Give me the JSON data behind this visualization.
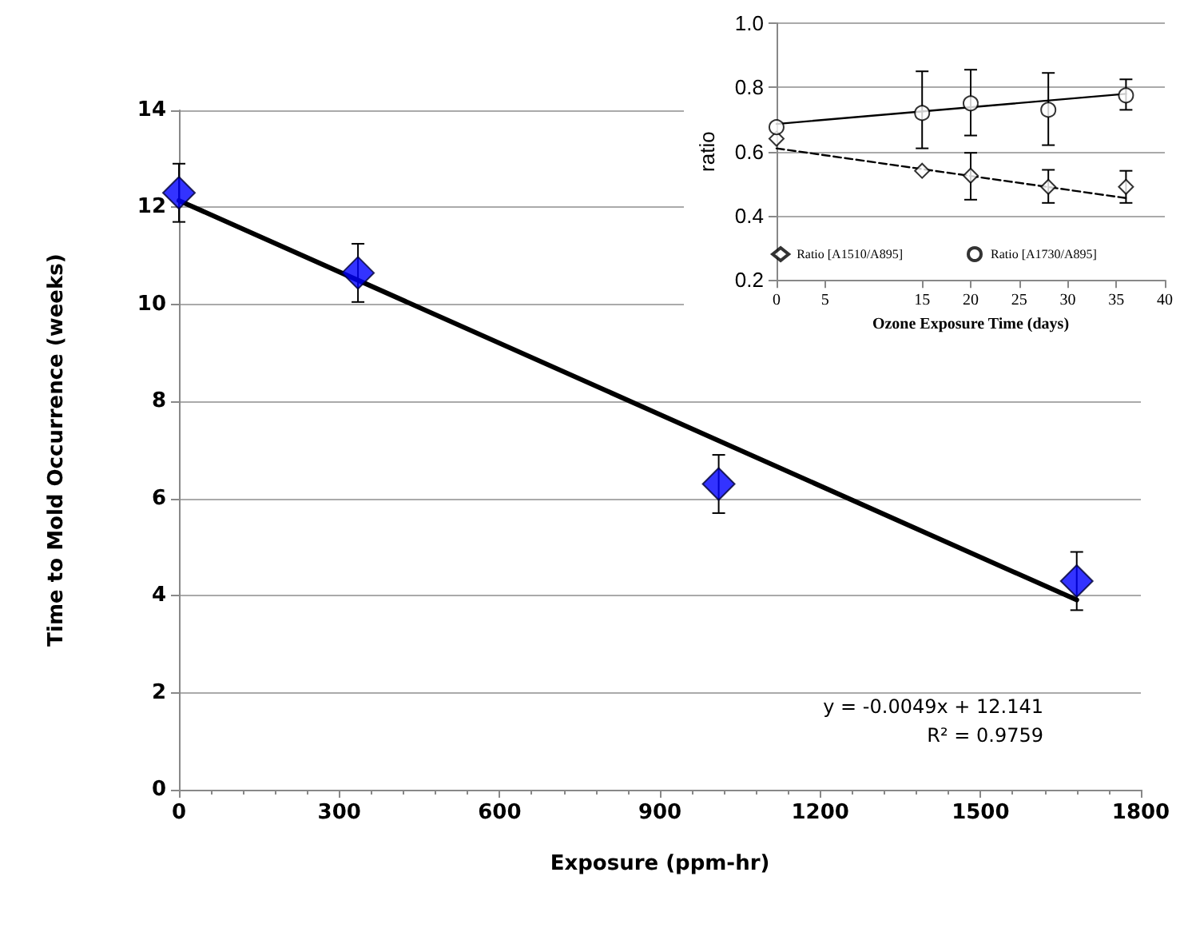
{
  "chart_data": [
    {
      "type": "scatter",
      "xlabel": "Exposure (ppm-hr)",
      "ylabel": "Time to Mold Occurrence (weeks)",
      "xlim": [
        0,
        1800
      ],
      "xticks": [
        0,
        300,
        600,
        900,
        1200,
        1500,
        1800
      ],
      "ylim": [
        0,
        14
      ],
      "yticks": [
        0,
        2,
        4,
        6,
        8,
        10,
        12,
        14
      ],
      "grid": "y",
      "series": [
        {
          "type": "scatter",
          "color": "#0000ff",
          "marker": "diamond",
          "x": [
            0,
            335,
            1010,
            1680
          ],
          "values": [
            12.3,
            10.65,
            6.3,
            4.3
          ],
          "errors": [
            0.6,
            0.6,
            0.6,
            0.6
          ]
        },
        {
          "type": "line",
          "color": "#000000",
          "marker": "none",
          "line_style": "solid",
          "x": [
            0,
            1680
          ],
          "values": [
            12.14,
            3.91
          ]
        }
      ],
      "annotations": [
        "y = -0.0049x + 12.141",
        "R² = 0.9759"
      ]
    },
    {
      "type": "scatter",
      "xlabel": "Ozone Exposure Time (days)",
      "ylabel": "ratio",
      "xlim": [
        0,
        40
      ],
      "xticks": [
        0,
        5,
        15,
        20,
        25,
        30,
        35,
        40
      ],
      "ylim": [
        0.2,
        1
      ],
      "yticks": [
        0.2,
        0.4,
        0.6,
        0.8,
        {
          "value": 1,
          "label": "1.0"
        }
      ],
      "grid": "y",
      "legend": "bottom",
      "series": [
        {
          "type": "scatter",
          "name": "Ratio [A1510/A895]",
          "color": "#000000",
          "marker": "diamond",
          "x": [
            0,
            15,
            20,
            28,
            36
          ],
          "values": [
            0.64,
            0.54,
            0.525,
            0.49,
            0.49
          ],
          "errors": [
            null,
            null,
            [
              0.45,
              0.596
            ],
            [
              0.44,
              0.543
            ],
            [
              0.44,
              0.54
            ]
          ]
        },
        {
          "type": "scatter",
          "name": "Ratio [A1730/A895]",
          "color": "#000000",
          "marker": "circle",
          "x": [
            0,
            15,
            20,
            28,
            36
          ],
          "values": [
            0.676,
            0.72,
            0.75,
            0.73,
            0.775
          ],
          "errors": [
            null,
            [
              0.61,
              0.85
            ],
            [
              0.65,
              0.855
            ],
            [
              0.62,
              0.845
            ],
            [
              0.73,
              0.825
            ]
          ]
        },
        {
          "type": "line",
          "color": "#000000",
          "marker": "none",
          "line_style": "dashed",
          "x": [
            0,
            36
          ],
          "values": [
            0.61,
            0.455
          ]
        },
        {
          "type": "line",
          "color": "#000000",
          "marker": "none",
          "line_style": "solid",
          "x": [
            0,
            36
          ],
          "values": [
            0.686,
            0.78
          ]
        }
      ]
    }
  ]
}
